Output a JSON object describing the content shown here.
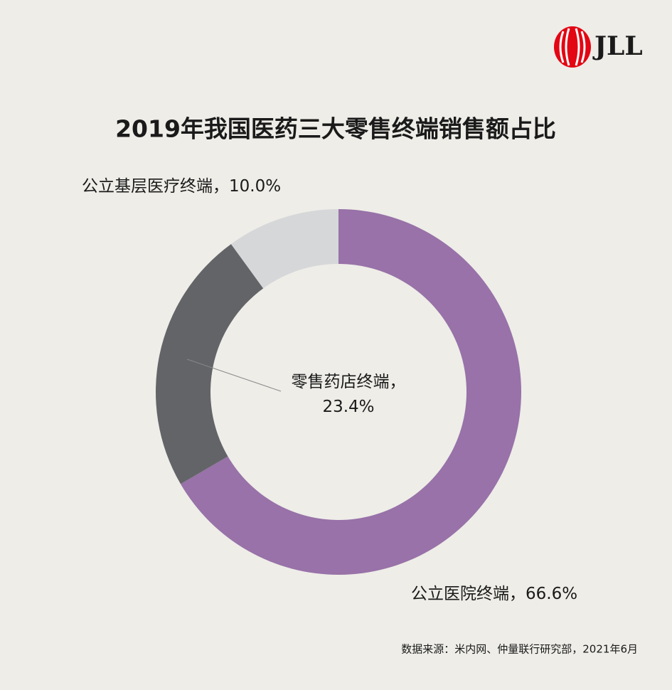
{
  "chart_data": {
    "type": "donut",
    "title": "2019年我国医药三大零售终端销售额占比",
    "categories": [
      "公立医院终端",
      "零售药店终端",
      "公立基层医疗终端"
    ],
    "values": [
      66.6,
      23.4,
      10.0
    ],
    "value_labels": [
      "66.6%",
      "23.4%",
      "10.0%"
    ],
    "label_separator": "，",
    "colors": [
      "#9872a8",
      "#636468",
      "#d6d7d9"
    ],
    "source": "数据来源：米内网、仲量联行研究部，2021年6月",
    "logo": "JLL"
  }
}
